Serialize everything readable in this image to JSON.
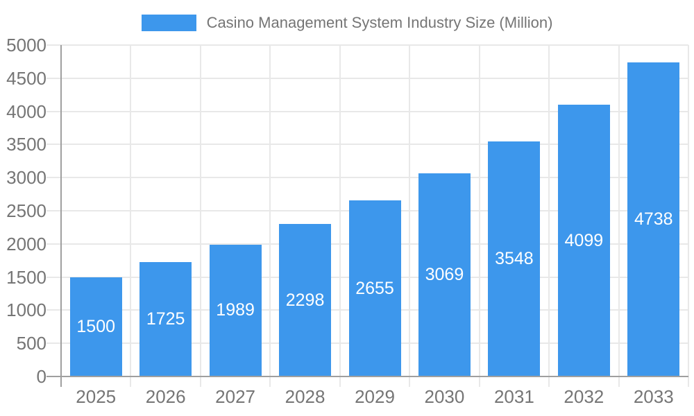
{
  "legend": {
    "label": "Casino Management System Industry Size (Million)"
  },
  "chart_data": {
    "type": "bar",
    "title": "Casino Management System Industry Size (Million)",
    "categories": [
      "2025",
      "2026",
      "2027",
      "2028",
      "2029",
      "2030",
      "2031",
      "2032",
      "2033"
    ],
    "values": [
      1500,
      1725,
      1989,
      2298,
      2655,
      3069,
      3548,
      4099,
      4738
    ],
    "xlabel": "",
    "ylabel": "",
    "ylim": [
      0,
      5000
    ],
    "ytick_step": 500,
    "yticks": [
      0,
      500,
      1000,
      1500,
      2000,
      2500,
      3000,
      3500,
      4000,
      4500,
      5000
    ],
    "grid": true,
    "legend_position": "top",
    "colors": {
      "bar": "#3d97ec",
      "bar_label": "#ffffff",
      "axis_text": "#757575",
      "title_text": "#757575",
      "grid_line": "#e8e8e8",
      "axis_line": "#9f9f9f"
    }
  }
}
